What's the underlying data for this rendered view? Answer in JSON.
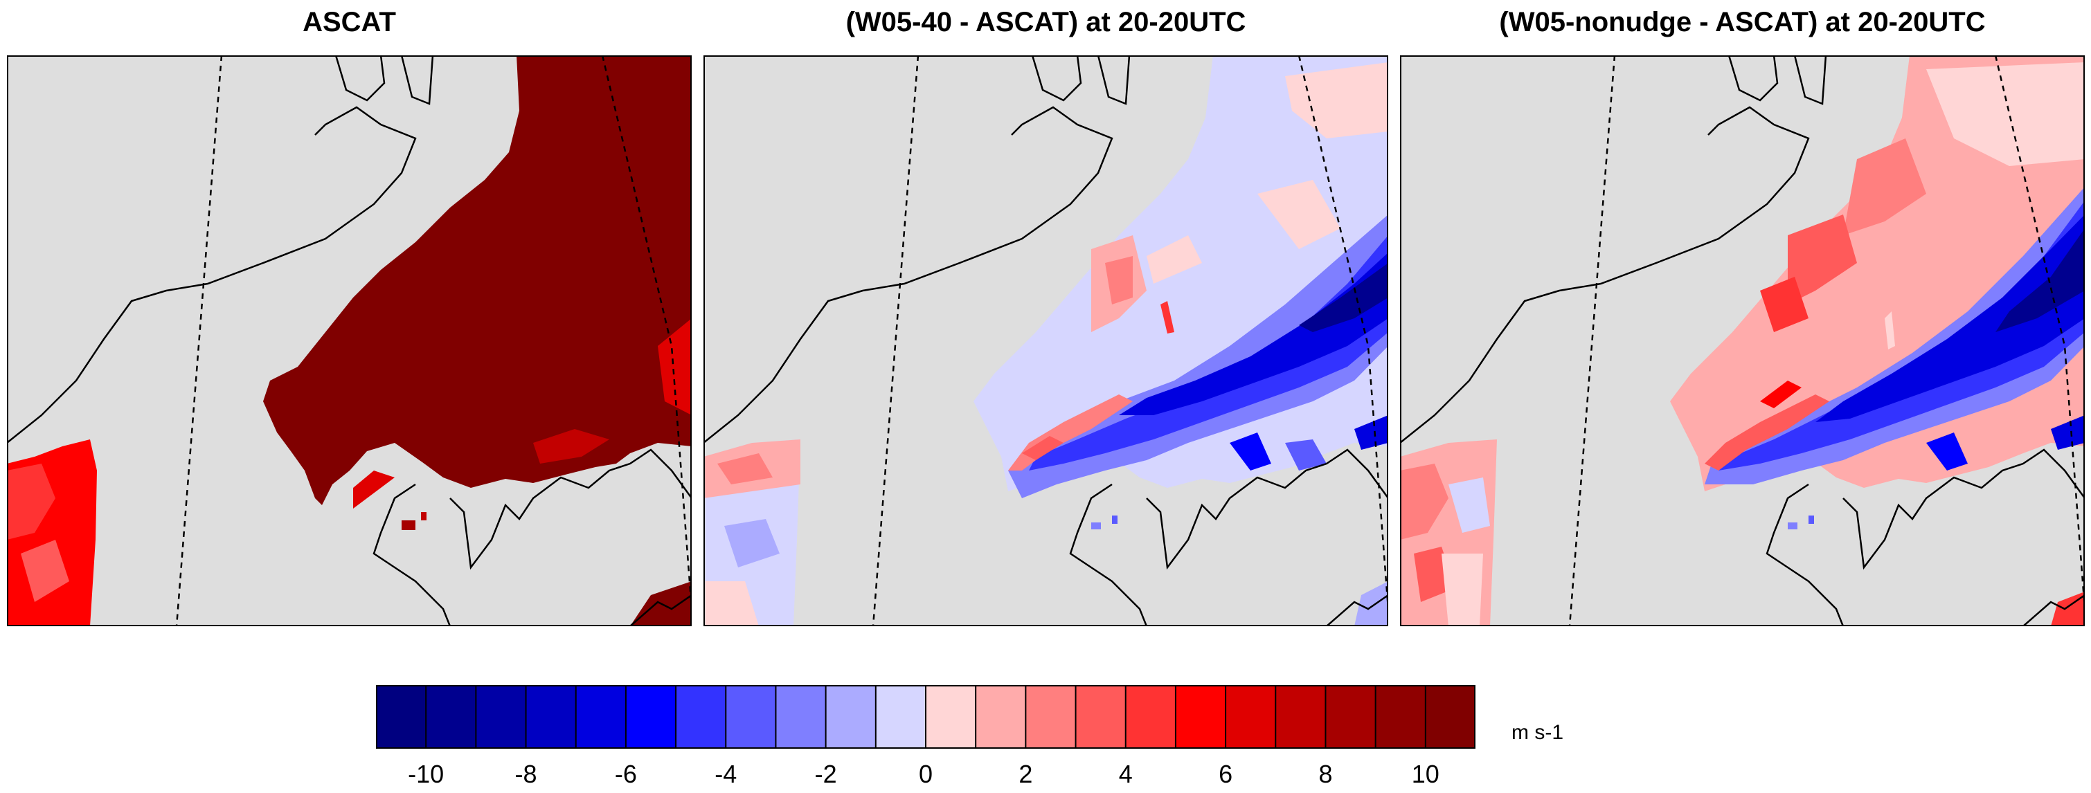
{
  "panels": [
    {
      "title": "ASCAT"
    },
    {
      "title": "(W05-40 - ASCAT) at 20-20UTC"
    },
    {
      "title": "(W05-nonudge - ASCAT) at 20-20UTC"
    }
  ],
  "colorbar": {
    "colors": [
      "#000080",
      "#00008f",
      "#0000a6",
      "#0000c2",
      "#0000e0",
      "#0000ff",
      "#3333ff",
      "#5a5aff",
      "#7f7fff",
      "#ababff",
      "#d6d6ff",
      "#ffd6d6",
      "#ffabab",
      "#ff7f7f",
      "#ff5a5a",
      "#ff3333",
      "#ff0000",
      "#e00000",
      "#c20000",
      "#a60000",
      "#8f0000",
      "#800000"
    ],
    "tick_labels": [
      "-10",
      "-8",
      "-6",
      "-4",
      "-2",
      "0",
      "2",
      "4",
      "6",
      "8",
      "10"
    ],
    "unit": "m s-1"
  },
  "map_colors": {
    "land_gray": "#dedede",
    "dark_red": "#800000",
    "outline": "#000000"
  }
}
